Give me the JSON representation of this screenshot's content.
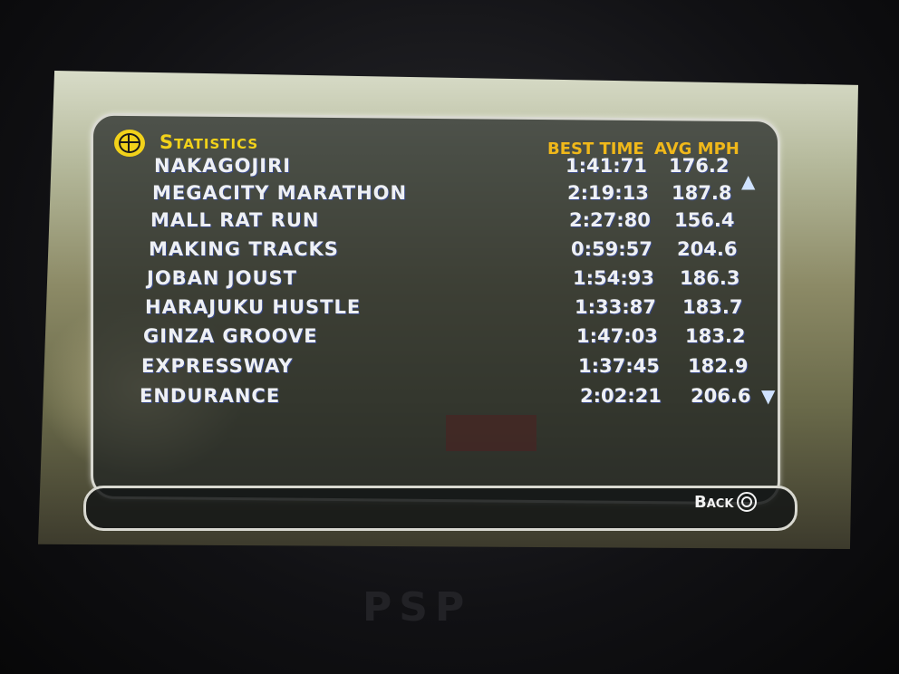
{
  "header": {
    "title": "Statistics",
    "col_time": "BEST TIME",
    "col_mph": "AVG MPH"
  },
  "rows": [
    {
      "name": "NAKAGOJIRI",
      "time": "1:41:71",
      "mph": "176.2"
    },
    {
      "name": "MEGACITY MARATHON",
      "time": "2:19:13",
      "mph": "187.8"
    },
    {
      "name": "MALL RAT RUN",
      "time": "2:27:80",
      "mph": "156.4"
    },
    {
      "name": "MAKING TRACKS",
      "time": "0:59:57",
      "mph": "204.6"
    },
    {
      "name": "JOBAN JOUST",
      "time": "1:54:93",
      "mph": "186.3"
    },
    {
      "name": "HARAJUKU HUSTLE",
      "time": "1:33:87",
      "mph": "183.7"
    },
    {
      "name": "GINZA GROOVE",
      "time": "1:47:03",
      "mph": "183.2"
    },
    {
      "name": "EXPRESSWAY",
      "time": "1:37:45",
      "mph": "182.9"
    },
    {
      "name": "ENDURANCE",
      "time": "2:02:21",
      "mph": "206.6"
    }
  ],
  "footer": {
    "back_label": "Back",
    "back_icon": "circle-button-icon"
  },
  "icons": {
    "title_icon": "globe-icon",
    "scroll_up": "scroll-up-icon",
    "scroll_down": "scroll-down-icon"
  },
  "device": {
    "logo": "PSP"
  },
  "colors": {
    "title": "#f2d21a",
    "column_header": "#f0b81a",
    "row_text": "#eef0f4"
  }
}
